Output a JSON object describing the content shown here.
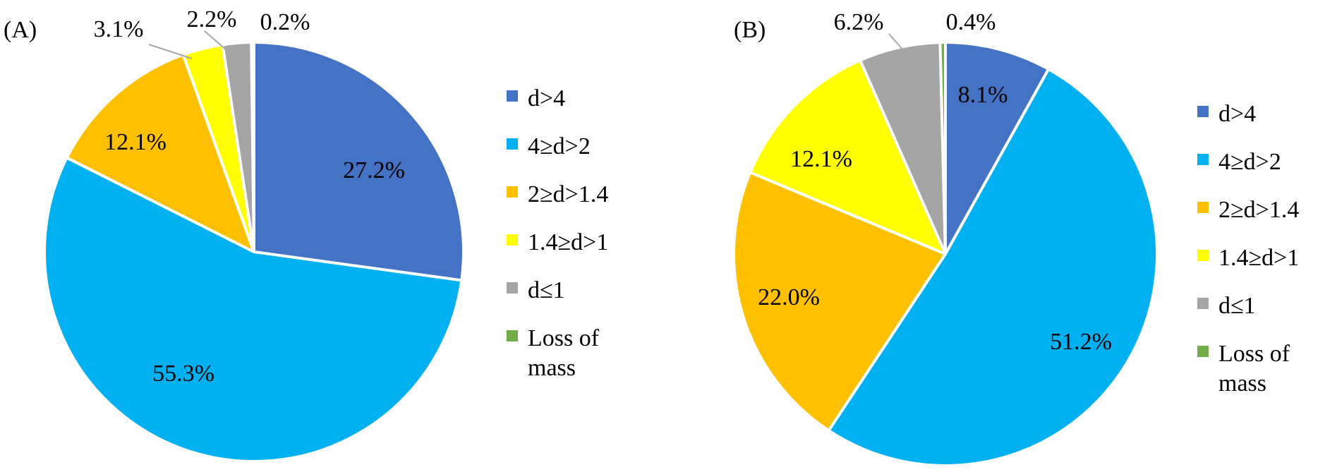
{
  "colors": {
    "d>4": "#4472C4",
    "4≥d>2": "#00B0F0",
    "2≥d>1.4": "#FFC000",
    "1.4≥d>1": "#FFFF00",
    "d≤1": "#A5A5A5",
    "Loss of mass": "#70AD47"
  },
  "chart_data": [
    {
      "type": "pie",
      "panel_label": "(A)",
      "legend_position": "right",
      "categories": [
        "d>4",
        "4≥d>2",
        "2≥d>1.4",
        "1.4≥d>1",
        "d≤1",
        "Loss of mass"
      ],
      "legend": [
        "d>4",
        "4≥d>2",
        "2≥d>1.4",
        "1.4≥d>1",
        "d≤1",
        [
          "Loss of",
          "mass"
        ]
      ],
      "values": [
        27.2,
        55.3,
        12.1,
        3.1,
        2.2,
        0.2
      ],
      "labels": [
        "27.2%",
        "55.3%",
        "12.1%",
        "3.1%",
        "2.2%",
        "0.2%"
      ]
    },
    {
      "type": "pie",
      "panel_label": "(B)",
      "legend_position": "right",
      "categories": [
        "d>4",
        "4≥d>2",
        "2≥d>1.4",
        "1.4≥d>1",
        "d≤1",
        "Loss of mass"
      ],
      "legend": [
        "d>4",
        "4≥d>2",
        "2≥d>1.4",
        "1.4≥d>1",
        "d≤1",
        [
          "Loss of",
          "mass"
        ]
      ],
      "values": [
        8.1,
        51.2,
        22.0,
        12.1,
        6.2,
        0.4
      ],
      "labels": [
        "8.1%",
        "51.2%",
        "22.0%",
        "12.1%",
        "6.2%",
        "0.4%"
      ]
    }
  ]
}
